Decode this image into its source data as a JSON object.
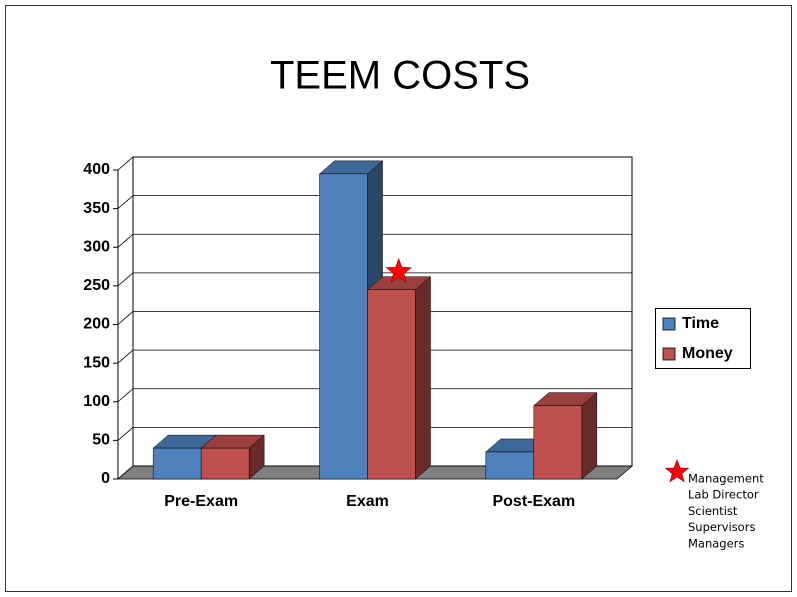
{
  "chart_data": {
    "type": "bar",
    "title": "TEEM COSTS",
    "categories": [
      "Pre-Exam",
      "Exam",
      "Post-Exam"
    ],
    "series": [
      {
        "name": "Time",
        "color": "#4f81bd",
        "values": [
          40,
          395,
          35
        ]
      },
      {
        "name": "Money",
        "color": "#c0504d",
        "values": [
          40,
          245,
          95
        ]
      }
    ],
    "ylim": [
      0,
      400
    ],
    "yticks": [
      0,
      50,
      100,
      150,
      200,
      250,
      300,
      350,
      400
    ],
    "grid": true,
    "legend": "right",
    "annotation_list": [
      "Management",
      "Lab Director",
      "Scientist",
      "Supervisors",
      "Managers"
    ]
  }
}
